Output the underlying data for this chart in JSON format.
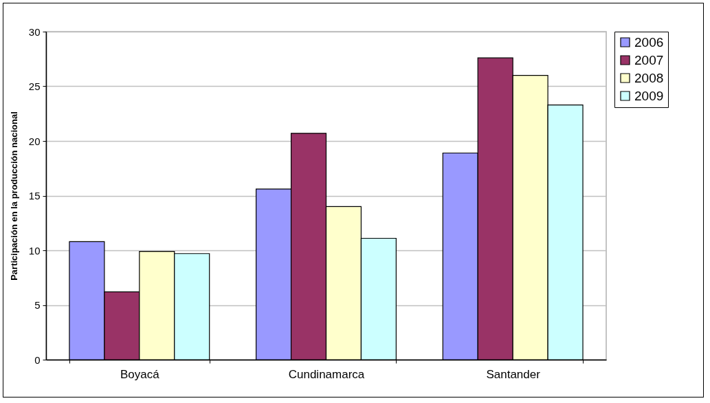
{
  "chart_data": {
    "type": "bar",
    "ylabel": "Participación en la producción nacional",
    "categories": [
      "Boyacá",
      "Cundinamarca",
      "Santander"
    ],
    "series": [
      {
        "name": "2006",
        "color": "#9999ff",
        "values": [
          10.8,
          15.6,
          18.9
        ]
      },
      {
        "name": "2007",
        "color": "#993366",
        "values": [
          6.2,
          20.7,
          27.6
        ]
      },
      {
        "name": "2008",
        "color": "#ffffcc",
        "values": [
          9.9,
          14.0,
          26.0
        ]
      },
      {
        "name": "2009",
        "color": "#ccffff",
        "values": [
          9.7,
          11.1,
          23.3
        ]
      }
    ],
    "ylim": [
      0,
      30
    ],
    "yticks": [
      0,
      5,
      10,
      15,
      20,
      25,
      30
    ],
    "grid": "y",
    "legend": "right"
  }
}
